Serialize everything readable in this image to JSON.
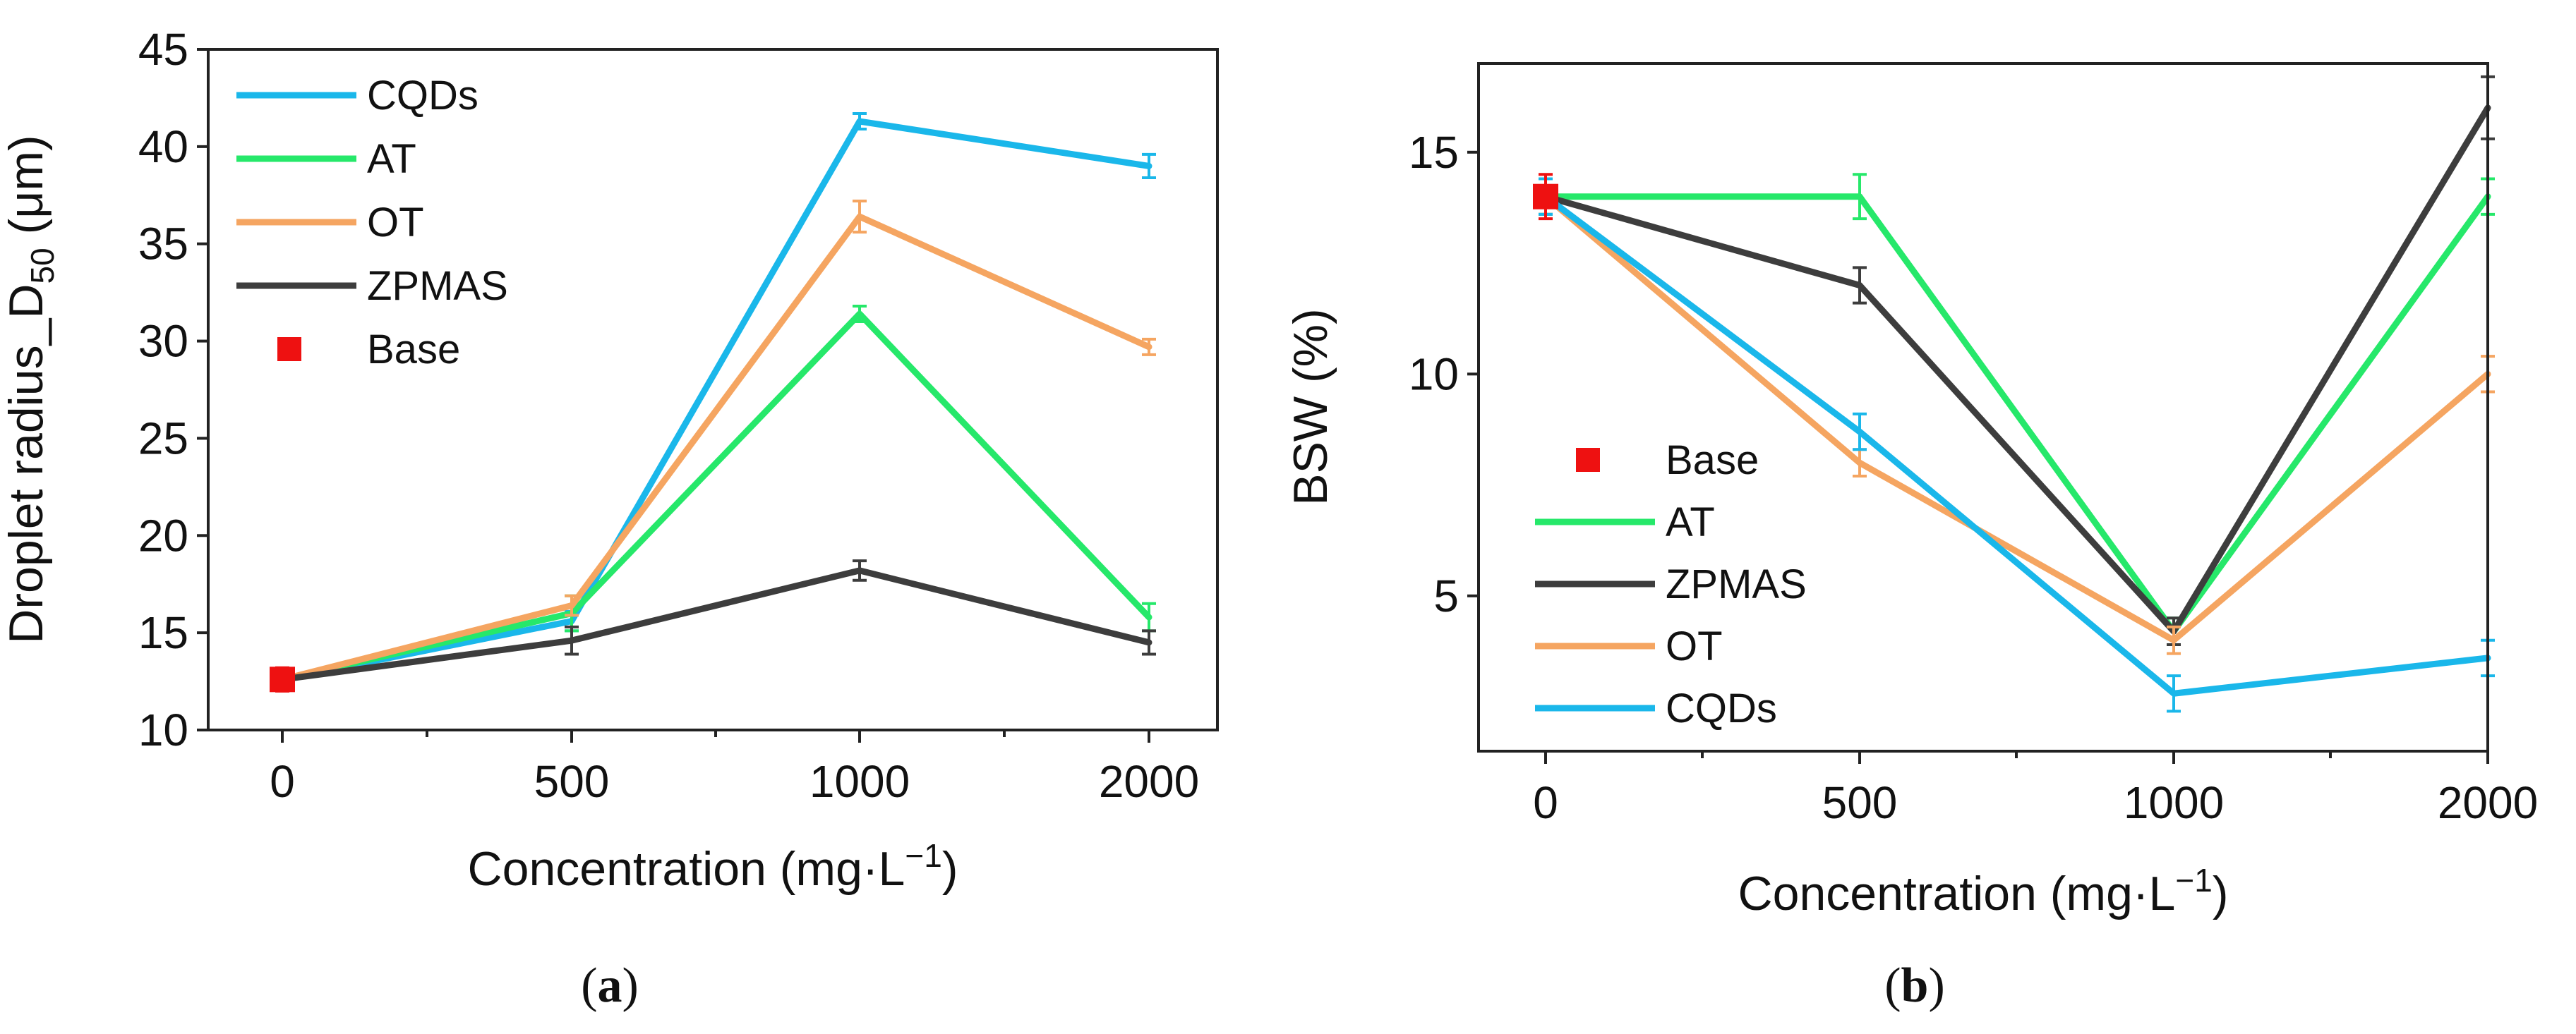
{
  "chart_data": [
    {
      "id": "a",
      "type": "line",
      "panel_label": "a",
      "title": "",
      "xlabel": "Concentration (mg·L",
      "xlabel_sup": "−1",
      "xlabel_close": ")",
      "ylabel": "Droplet radius_D",
      "ylabel_sub": "50",
      "ylabel_suffix": " (μm)",
      "categories": [
        "0",
        "500",
        "1000",
        "2000"
      ],
      "ylim": [
        10,
        45
      ],
      "yticks": [
        10,
        15,
        20,
        25,
        30,
        35,
        40,
        45
      ],
      "legend_position": "top-left",
      "series": [
        {
          "name": "CQDs",
          "color": "#1ab7ea",
          "values": [
            12.6,
            15.6,
            41.3,
            39.0
          ],
          "errors": [
            0.5,
            0.5,
            0.4,
            0.6
          ]
        },
        {
          "name": "AT",
          "color": "#26e86a",
          "values": [
            12.6,
            16.0,
            31.4,
            15.8
          ],
          "errors": [
            0.5,
            0.9,
            0.4,
            0.7
          ]
        },
        {
          "name": "OT",
          "color": "#f5a561",
          "values": [
            12.6,
            16.4,
            36.4,
            29.7
          ],
          "errors": [
            0.5,
            0.5,
            0.8,
            0.4
          ]
        },
        {
          "name": "ZPMAS",
          "color": "#3d3d3d",
          "values": [
            12.6,
            14.6,
            18.2,
            14.5
          ],
          "errors": [
            0.5,
            0.7,
            0.5,
            0.6
          ]
        }
      ],
      "base": {
        "name": "Base",
        "color": "#ee1111",
        "x": "0",
        "value": 12.6,
        "error": 0.6
      }
    },
    {
      "id": "b",
      "type": "line",
      "panel_label": "b",
      "title": "",
      "xlabel": "Concentration (mg·L",
      "xlabel_sup": "−1",
      "xlabel_close": ")",
      "ylabel": "BSW (%)",
      "categories": [
        "0",
        "500",
        "1000",
        "2000"
      ],
      "ylim": [
        1.5,
        17
      ],
      "yticks": [
        5,
        10,
        15
      ],
      "legend_position": "bottom-left",
      "series": [
        {
          "name": "AT",
          "color": "#26e86a",
          "values": [
            14.0,
            14.0,
            4.2,
            14.0
          ],
          "errors": [
            0.4,
            0.5,
            0.3,
            0.4
          ]
        },
        {
          "name": "ZPMAS",
          "color": "#3d3d3d",
          "values": [
            14.0,
            12.0,
            4.2,
            16.0
          ],
          "errors": [
            0.4,
            0.4,
            0.3,
            0.7
          ]
        },
        {
          "name": "OT",
          "color": "#f5a561",
          "values": [
            14.0,
            8.0,
            4.0,
            10.0
          ],
          "errors": [
            0.4,
            0.3,
            0.3,
            0.4
          ]
        },
        {
          "name": "CQDs",
          "color": "#1ab7ea",
          "values": [
            14.0,
            8.7,
            2.8,
            3.6
          ],
          "errors": [
            0.4,
            0.4,
            0.4,
            0.4
          ]
        }
      ],
      "base": {
        "name": "Base",
        "color": "#ee1111",
        "x": "0",
        "value": 14.0,
        "error": 0.5
      }
    }
  ]
}
